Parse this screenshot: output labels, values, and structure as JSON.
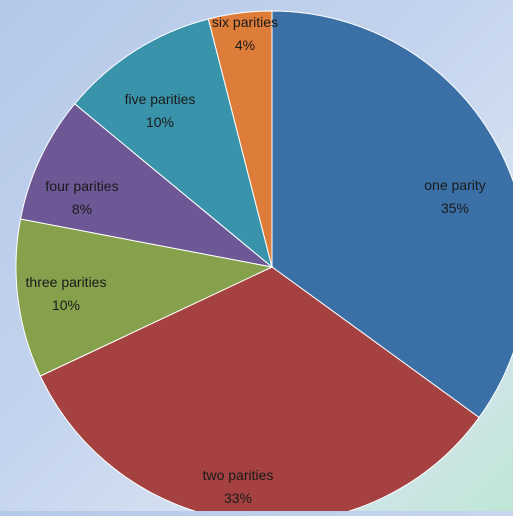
{
  "chart_data": {
    "type": "pie",
    "title": "",
    "start_angle_deg": 0,
    "direction": "clockwise",
    "legend": "none",
    "slices": [
      {
        "label": "one parity",
        "value": 35,
        "value_label": "35%",
        "color": "#3a70a6"
      },
      {
        "label": "two parities",
        "value": 33,
        "value_label": "33%",
        "color": "#a54141"
      },
      {
        "label": "three parities",
        "value": 10,
        "value_label": "10%",
        "color": "#86a14c"
      },
      {
        "label": "four parities",
        "value": 8,
        "value_label": "8%",
        "color": "#6d5795"
      },
      {
        "label": "five parities",
        "value": 10,
        "value_label": "10%",
        "color": "#3993aa"
      },
      {
        "label": "six parities",
        "value": 4,
        "value_label": "4%",
        "color": "#de7d3a"
      }
    ]
  }
}
